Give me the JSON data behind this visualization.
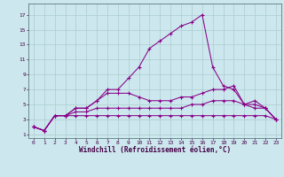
{
  "xlabel": "Windchill (Refroidissement éolien,°C)",
  "bg_color": "#cce8ee",
  "line_color": "#880088",
  "grid_color": "#aacccc",
  "spine_color": "#446666",
  "tick_color": "#440044",
  "xlim": [
    -0.5,
    23.5
  ],
  "ylim": [
    0.5,
    18.5
  ],
  "xticks": [
    0,
    1,
    2,
    3,
    4,
    5,
    6,
    7,
    8,
    9,
    10,
    11,
    12,
    13,
    14,
    15,
    16,
    17,
    18,
    19,
    20,
    21,
    22,
    23
  ],
  "yticks": [
    1,
    3,
    5,
    7,
    9,
    11,
    13,
    15,
    17
  ],
  "line1_x": [
    0,
    1,
    2,
    3,
    4,
    5,
    6,
    7,
    8,
    9,
    10,
    11,
    12,
    13,
    14,
    15,
    16,
    17,
    18,
    19,
    20,
    21,
    22,
    23
  ],
  "line1_y": [
    2.0,
    1.5,
    3.5,
    3.5,
    4.5,
    4.5,
    5.5,
    7.0,
    7.0,
    8.5,
    10.0,
    12.5,
    13.5,
    14.5,
    15.5,
    16.0,
    17.0,
    10.0,
    7.5,
    7.0,
    5.0,
    5.5,
    4.5,
    3.0
  ],
  "line2_x": [
    0,
    1,
    2,
    3,
    4,
    5,
    6,
    7,
    8,
    9,
    10,
    11,
    12,
    13,
    14,
    15,
    16,
    17,
    18,
    19,
    20,
    21,
    22,
    23
  ],
  "line2_y": [
    2.0,
    1.5,
    3.5,
    3.5,
    4.5,
    4.5,
    5.5,
    6.5,
    6.5,
    6.5,
    6.0,
    5.5,
    5.5,
    5.5,
    6.0,
    6.0,
    6.5,
    7.0,
    7.0,
    7.5,
    5.0,
    5.0,
    4.5,
    3.0
  ],
  "line3_x": [
    0,
    1,
    2,
    3,
    4,
    5,
    6,
    7,
    8,
    9,
    10,
    11,
    12,
    13,
    14,
    15,
    16,
    17,
    18,
    19,
    20,
    21,
    22,
    23
  ],
  "line3_y": [
    2.0,
    1.5,
    3.5,
    3.5,
    4.0,
    4.0,
    4.5,
    4.5,
    4.5,
    4.5,
    4.5,
    4.5,
    4.5,
    4.5,
    4.5,
    5.0,
    5.0,
    5.5,
    5.5,
    5.5,
    5.0,
    4.5,
    4.5,
    3.0
  ],
  "line4_x": [
    0,
    1,
    2,
    3,
    4,
    5,
    6,
    7,
    8,
    9,
    10,
    11,
    12,
    13,
    14,
    15,
    16,
    17,
    18,
    19,
    20,
    21,
    22,
    23
  ],
  "line4_y": [
    2.0,
    1.5,
    3.5,
    3.5,
    3.5,
    3.5,
    3.5,
    3.5,
    3.5,
    3.5,
    3.5,
    3.5,
    3.5,
    3.5,
    3.5,
    3.5,
    3.5,
    3.5,
    3.5,
    3.5,
    3.5,
    3.5,
    3.5,
    3.0
  ]
}
